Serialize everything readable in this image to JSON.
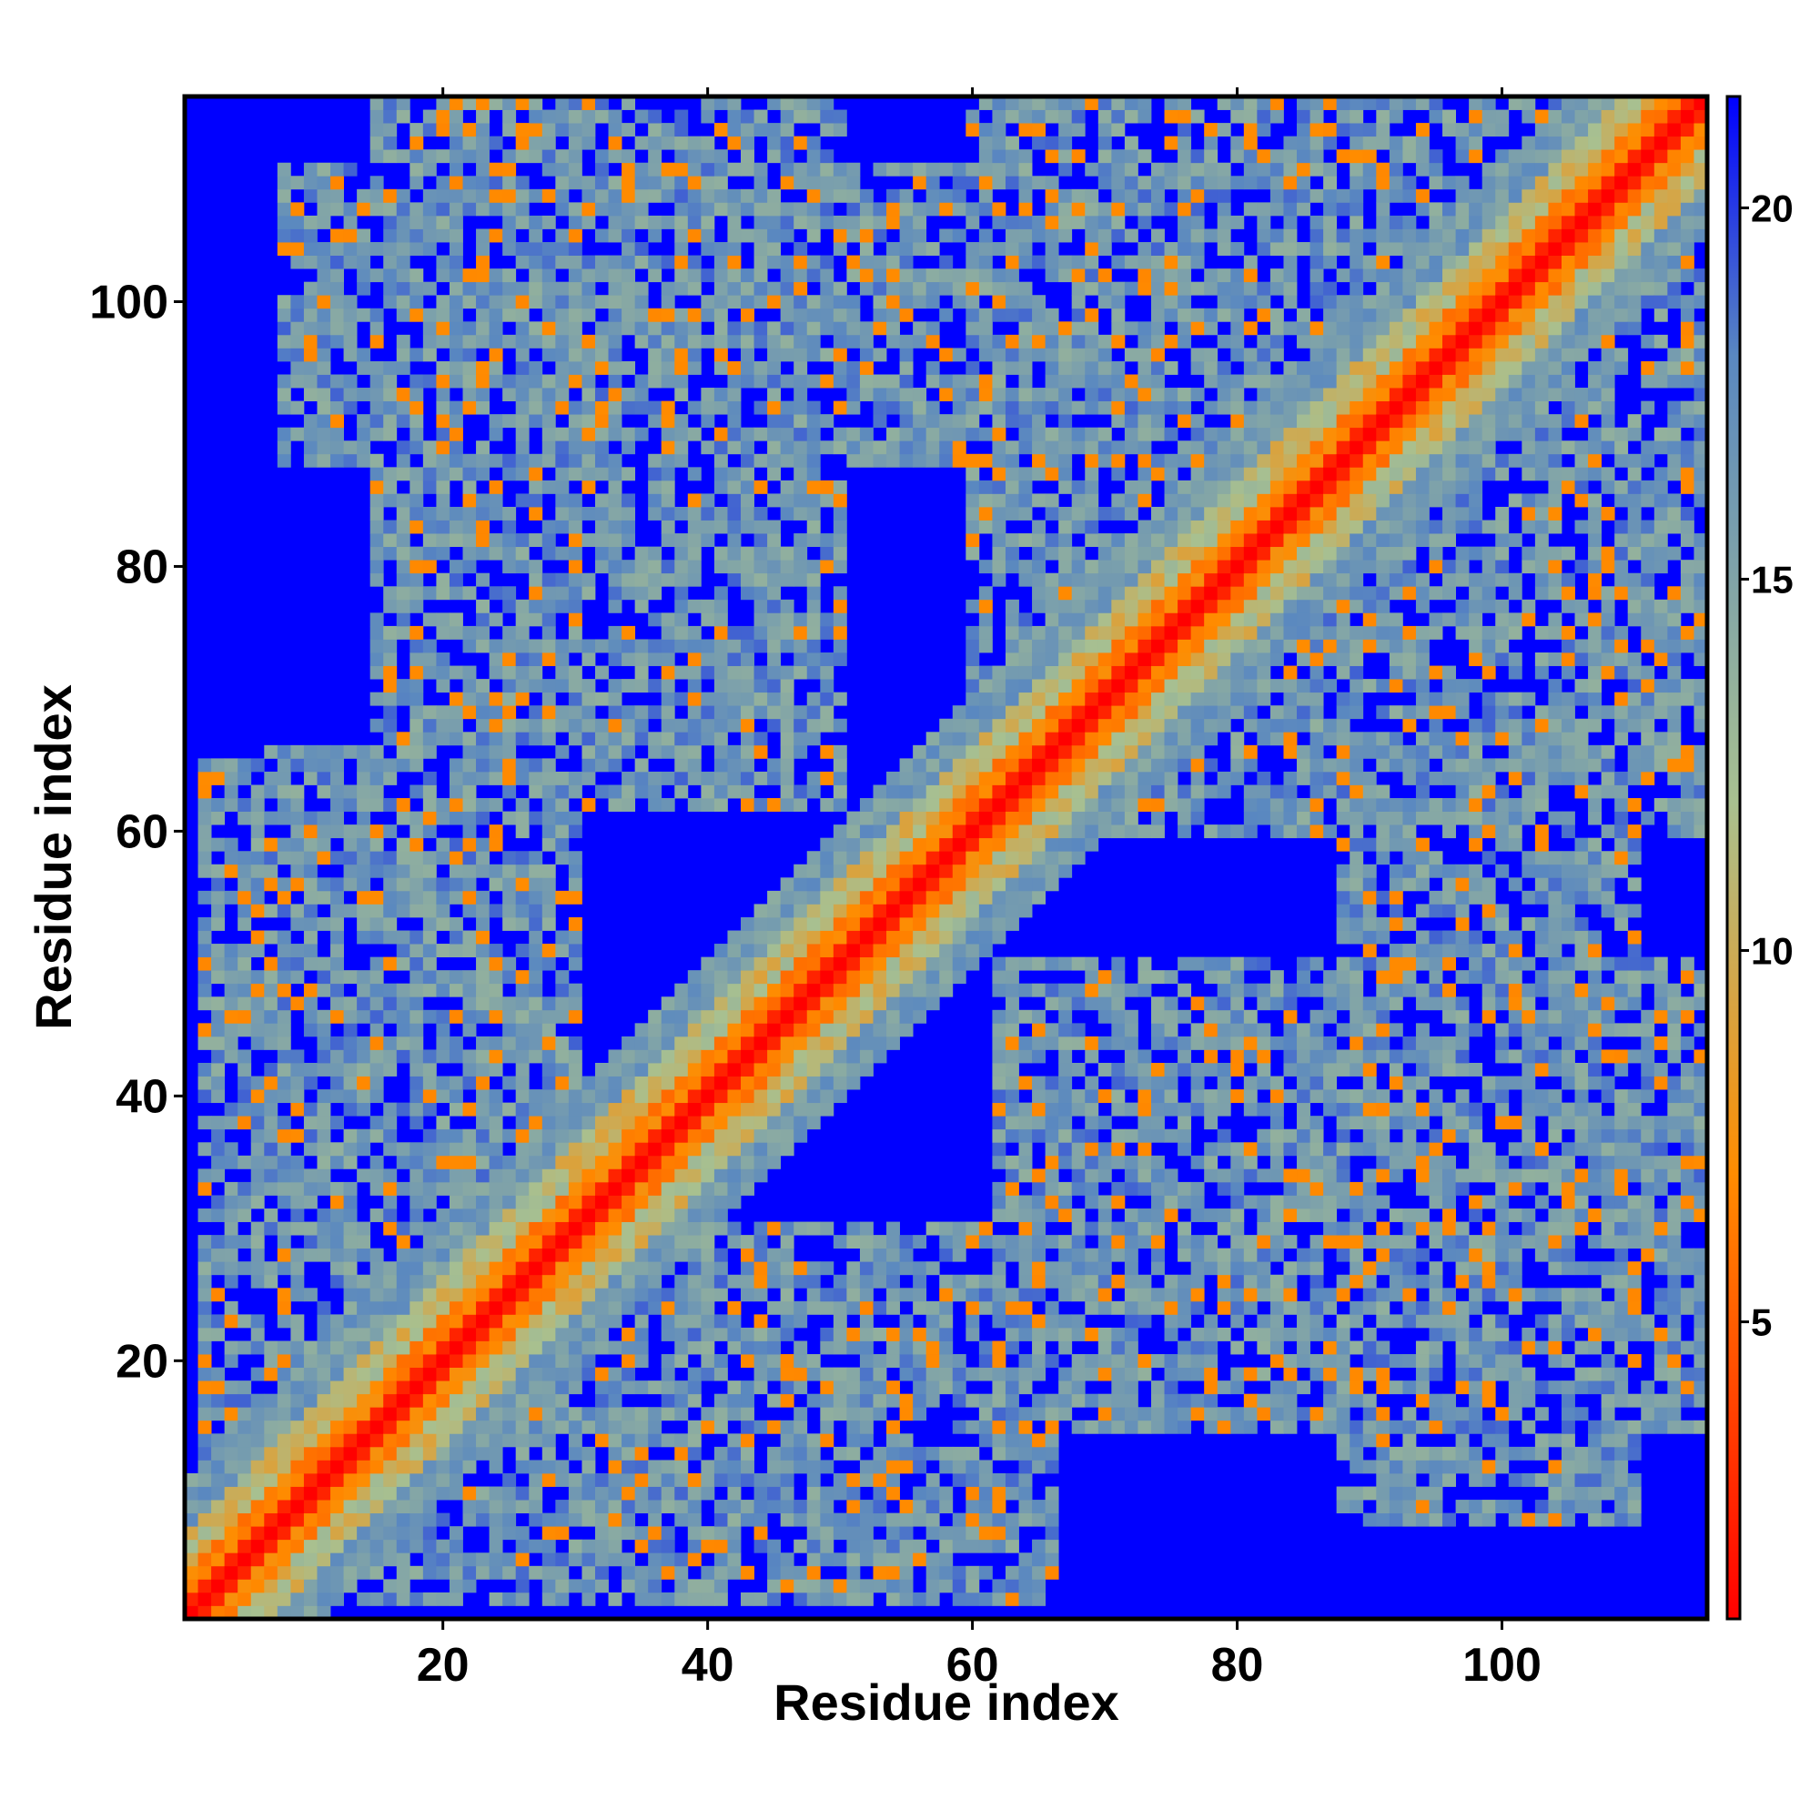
{
  "chart_data": {
    "type": "heatmap",
    "title": "",
    "xlabel": "Residue index",
    "ylabel": "Residue index",
    "x_range": [
      1,
      115
    ],
    "y_range": [
      1,
      115
    ],
    "n_residues": 115,
    "x_ticks": [
      20,
      40,
      60,
      80,
      100
    ],
    "y_ticks": [
      20,
      40,
      60,
      80,
      100
    ],
    "x_tick_labels": [
      "20",
      "40",
      "60",
      "80",
      "100"
    ],
    "y_tick_labels": [
      "20",
      "40",
      "60",
      "80",
      "100"
    ],
    "colorbar": {
      "range": [
        1,
        21.5
      ],
      "ticks": [
        5,
        10,
        15,
        20
      ],
      "tick_labels": [
        "5",
        "10",
        "15",
        "20"
      ],
      "colors": [
        "#ff0000",
        "#ff8c00",
        "#a8c090",
        "#5a88c0",
        "#0000ff"
      ],
      "color_stops": [
        1,
        7,
        12,
        18,
        21.5
      ]
    },
    "grid": false,
    "legend": "colorbar on right",
    "structure": {
      "diagonal_value": 1,
      "background_value": 21.5,
      "description_features": [
        {
          "kind": "diagonal-band",
          "from": 1,
          "to": 115
        },
        {
          "kind": "contact-region",
          "x": [
            2,
            26
          ],
          "y": [
            10,
            65
          ]
        },
        {
          "kind": "contact-region",
          "x": [
            8,
            70
          ],
          "y": [
            88,
            110
          ]
        },
        {
          "kind": "contact-region",
          "x": [
            30,
            66
          ],
          "y": [
            4,
            30
          ]
        },
        {
          "kind": "contact-region",
          "x": [
            62,
            115
          ],
          "y": [
            15,
            50
          ]
        },
        {
          "kind": "contact-region",
          "x": [
            90,
            115
          ],
          "y": [
            60,
            110
          ]
        },
        {
          "kind": "contact-region",
          "x": [
            60,
            85
          ],
          "y": [
            60,
            115
          ]
        }
      ]
    }
  }
}
